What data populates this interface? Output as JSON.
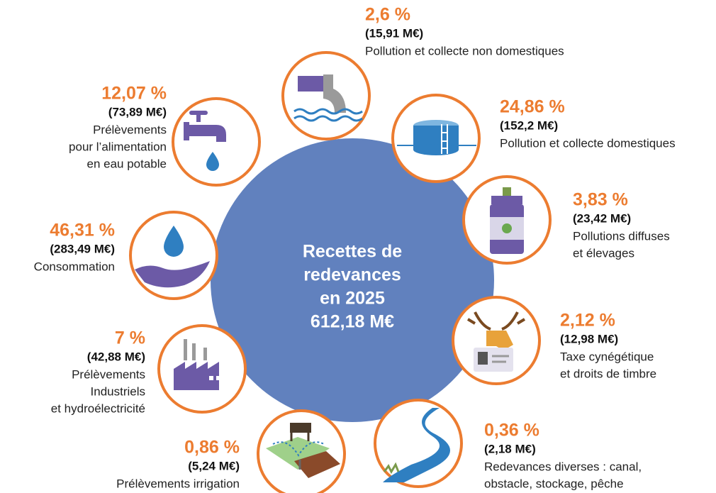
{
  "center": {
    "lines": [
      "Recettes de",
      "redevances",
      "en 2025",
      "612,18 M€"
    ]
  },
  "items": [
    {
      "percent": "2,6 %",
      "amount": "(15,91 M€)",
      "label": [
        "Pollution et collecte non domestiques"
      ]
    },
    {
      "percent": "24,86 %",
      "amount": "(152,2 M€)",
      "label": [
        "Pollution et collecte domestiques"
      ]
    },
    {
      "percent": "3,83 %",
      "amount": "(23,42 M€)",
      "label": [
        "Pollutions diffuses",
        "et élevages"
      ]
    },
    {
      "percent": "2,12 %",
      "amount": "(12,98 M€)",
      "label": [
        "Taxe cynégétique",
        "et droits de timbre"
      ]
    },
    {
      "percent": "0,36 %",
      "amount": "(2,18 M€)",
      "label": [
        "Redevances diverses : canal,",
        "obstacle, stockage, pêche"
      ]
    },
    {
      "percent": "0,86 %",
      "amount": "(5,24 M€)",
      "label": [
        "Prélèvements irrigation"
      ]
    },
    {
      "percent": "7 %",
      "amount": "(42,88 M€)",
      "label": [
        "Prélèvements",
        "Industriels",
        "et hydroélectricité"
      ]
    },
    {
      "percent": "46,31 %",
      "amount": "(283,49 M€)",
      "label": [
        "Consommation"
      ]
    },
    {
      "percent": "12,07 %",
      "amount": "(73,89 M€)",
      "label": [
        "Prélèvements",
        "pour l’alimentation",
        "en eau potable"
      ]
    }
  ]
}
